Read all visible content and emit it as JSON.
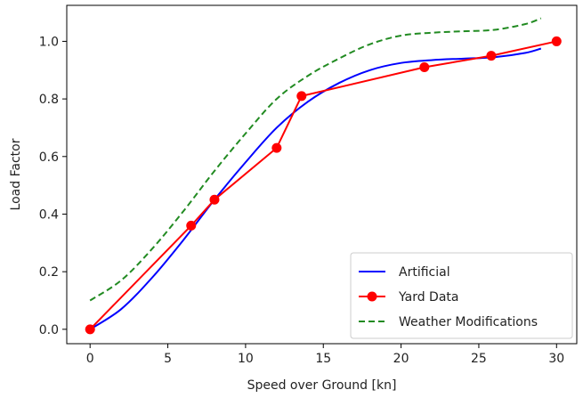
{
  "chart_data": {
    "type": "line",
    "xlabel": "Speed over Ground [kn]",
    "ylabel": "Load Factor",
    "xlim": [
      -1.5,
      31.3
    ],
    "ylim": [
      -0.05,
      1.125
    ],
    "xticks": [
      0,
      5,
      10,
      15,
      20,
      25,
      30
    ],
    "yticks": [
      0.0,
      0.2,
      0.4,
      0.6,
      0.8,
      1.0
    ],
    "grid": false,
    "legend_position": "lower-right",
    "series": [
      {
        "name": "Artificial",
        "color": "#0000ff",
        "style": "solid",
        "marker": "none",
        "x": [
          0,
          2,
          4,
          6,
          8,
          10,
          12,
          14,
          16,
          18,
          20,
          22,
          24,
          26,
          28,
          29
        ],
        "y": [
          0.0,
          0.07,
          0.18,
          0.31,
          0.45,
          0.58,
          0.7,
          0.79,
          0.855,
          0.9,
          0.925,
          0.935,
          0.94,
          0.945,
          0.96,
          0.975
        ]
      },
      {
        "name": "Yard Data",
        "color": "#ff0000",
        "style": "solid",
        "marker": "circle",
        "x": [
          0,
          6.5,
          8,
          12,
          13.6,
          21.5,
          25.8,
          30
        ],
        "y": [
          0.0,
          0.36,
          0.45,
          0.63,
          0.81,
          0.91,
          0.95,
          1.0
        ]
      },
      {
        "name": "Weather Modifications",
        "color": "#228b22",
        "style": "dashed",
        "marker": "none",
        "x": [
          0,
          2,
          4,
          6,
          8,
          10,
          12,
          14,
          16,
          18,
          20,
          22,
          24,
          26,
          28,
          29
        ],
        "y": [
          0.1,
          0.17,
          0.28,
          0.41,
          0.55,
          0.68,
          0.8,
          0.88,
          0.94,
          0.99,
          1.02,
          1.03,
          1.035,
          1.04,
          1.06,
          1.08
        ]
      }
    ]
  }
}
